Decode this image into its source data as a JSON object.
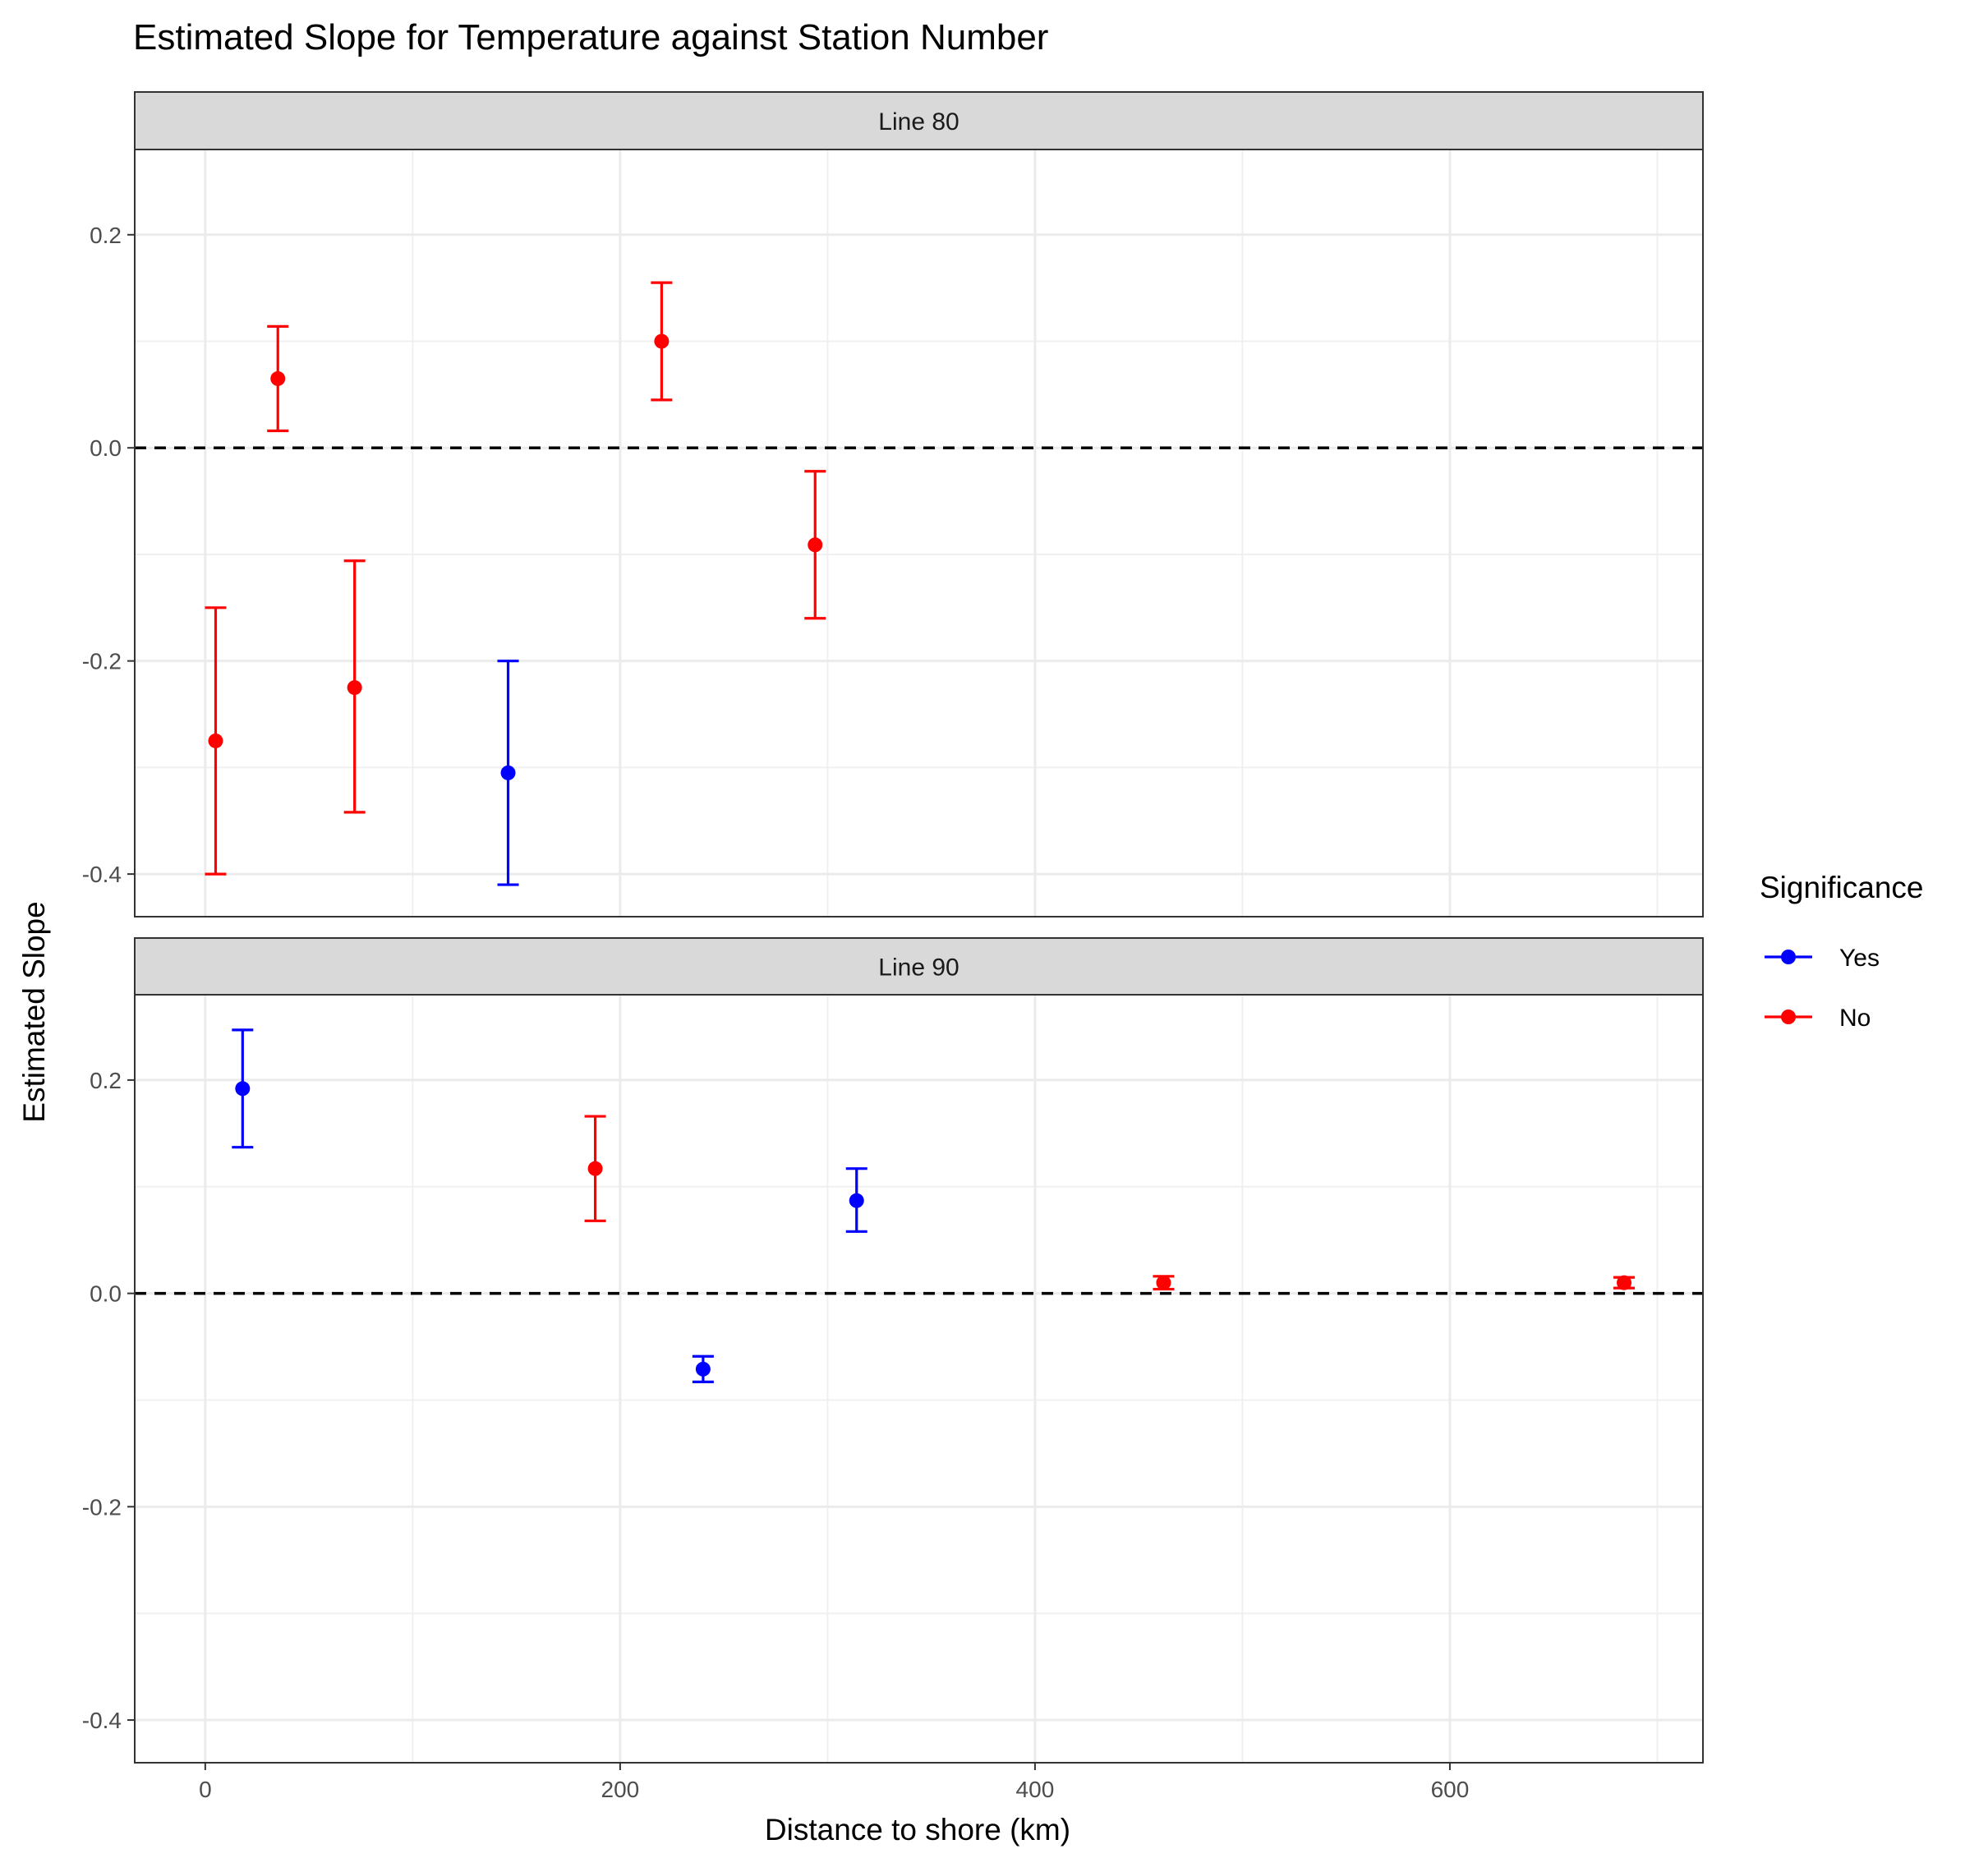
{
  "chart_data": {
    "type": "scatter",
    "title": "Estimated Slope for Temperature against Station Number",
    "xlabel": "Distance to shore (km)",
    "ylabel": "Estimated Slope",
    "xlim": [
      -34,
      722
    ],
    "ylim": [
      -0.44,
      0.28
    ],
    "x_ticks": [
      0,
      200,
      400,
      600
    ],
    "x_tick_labels": [
      "0",
      "200",
      "400",
      "600"
    ],
    "y_ticks": [
      0.2,
      0.0,
      -0.2,
      -0.4
    ],
    "y_tick_labels": [
      "0.2",
      "0.0",
      "-0.2",
      "-0.4"
    ],
    "grid": true,
    "reference_line": {
      "y": 0,
      "style": "dashed"
    },
    "legend": {
      "title": "Significance",
      "position": "right",
      "entries": [
        {
          "label": "Yes",
          "color": "#0000ff"
        },
        {
          "label": "No",
          "color": "#ff0000"
        }
      ]
    },
    "panels": [
      {
        "label": "Line 80",
        "points": [
          {
            "x": 5,
            "y": -0.275,
            "ymin": -0.4,
            "ymax": -0.15,
            "significance": "No"
          },
          {
            "x": 35,
            "y": 0.065,
            "ymin": 0.016,
            "ymax": 0.114,
            "significance": "No"
          },
          {
            "x": 72,
            "y": -0.225,
            "ymin": -0.342,
            "ymax": -0.106,
            "significance": "No"
          },
          {
            "x": 146,
            "y": -0.305,
            "ymin": -0.41,
            "ymax": -0.2,
            "significance": "Yes"
          },
          {
            "x": 220,
            "y": 0.1,
            "ymin": 0.045,
            "ymax": 0.155,
            "significance": "No"
          },
          {
            "x": 294,
            "y": -0.091,
            "ymin": -0.16,
            "ymax": -0.022,
            "significance": "No"
          }
        ]
      },
      {
        "label": "Line 90",
        "points": [
          {
            "x": 18,
            "y": 0.192,
            "ymin": 0.137,
            "ymax": 0.247,
            "significance": "Yes"
          },
          {
            "x": 188,
            "y": 0.117,
            "ymin": 0.068,
            "ymax": 0.166,
            "significance": "No"
          },
          {
            "x": 240,
            "y": -0.071,
            "ymin": -0.083,
            "ymax": -0.059,
            "significance": "Yes"
          },
          {
            "x": 314,
            "y": 0.087,
            "ymin": 0.058,
            "ymax": 0.117,
            "significance": "Yes"
          },
          {
            "x": 462,
            "y": 0.01,
            "ymin": 0.004,
            "ymax": 0.016,
            "significance": "No"
          },
          {
            "x": 684,
            "y": 0.01,
            "ymin": 0.005,
            "ymax": 0.015,
            "significance": "No"
          }
        ]
      }
    ]
  }
}
